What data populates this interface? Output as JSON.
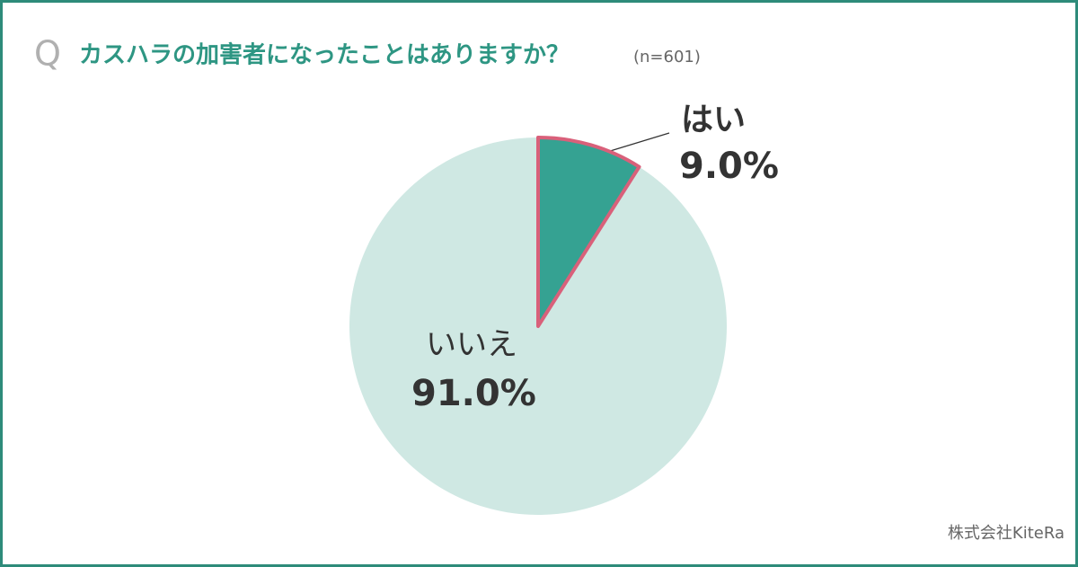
{
  "chart_data": {
    "type": "pie",
    "title_prefix": "Q",
    "title": "カスハラの加害者になったことはありますか？",
    "note": "(n=601)",
    "categories": [
      "はい",
      "いいえ"
    ],
    "values": [
      9.0,
      91.0
    ],
    "value_labels": [
      "9.0%",
      "91.0%"
    ],
    "colors": [
      "#35a292",
      "#cfe8e3"
    ],
    "highlight_stroke": "#d9607a",
    "source": "株式会社KiteRa"
  }
}
